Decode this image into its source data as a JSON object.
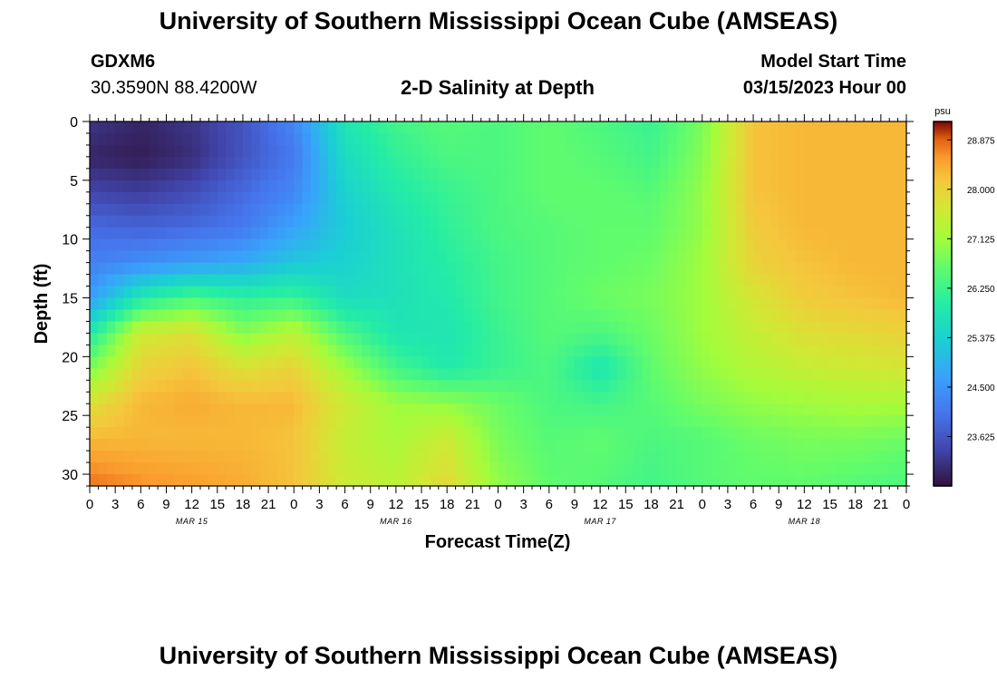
{
  "header": {
    "title": "University of Southern Mississippi Ocean Cube (AMSEAS)",
    "station_id": "GDXM6",
    "coordinates": "30.3590N  88.4200W",
    "plot_title": "2-D Salinity at Depth",
    "model_start_label": "Model Start Time",
    "model_start_value": "03/15/2023 Hour 00"
  },
  "footer": {
    "title": "University of Southern Mississippi Ocean Cube (AMSEAS)"
  },
  "chart_data": {
    "type": "heatmap",
    "title": "2-D Salinity at Depth",
    "xlabel": "Forecast Time(Z)",
    "ylabel": "Depth (ft)",
    "xlim": [
      0,
      96
    ],
    "ylim": [
      0,
      31
    ],
    "y_inverted": true,
    "x_tick_labels": [
      "0",
      "3",
      "6",
      "9",
      "12",
      "15",
      "18",
      "21",
      "0",
      "3",
      "6",
      "9",
      "12",
      "15",
      "18",
      "21",
      "0",
      "3",
      "6",
      "9",
      "12",
      "15",
      "18",
      "21",
      "0",
      "3",
      "6",
      "9",
      "12",
      "15",
      "18",
      "21",
      "0"
    ],
    "date_labels": [
      {
        "label": "MAR 15",
        "hour": 12
      },
      {
        "label": "MAR 16",
        "hour": 36
      },
      {
        "label": "MAR 17",
        "hour": 60
      },
      {
        "label": "MAR 18",
        "hour": 84
      }
    ],
    "y_ticks": [
      0,
      5,
      10,
      15,
      20,
      25,
      30
    ],
    "colorbar": {
      "unit": "psu",
      "min": 22.75,
      "max": 29.2,
      "tick_values": [
        28.875,
        28.0,
        27.125,
        26.25,
        25.375,
        24.5,
        23.625
      ],
      "tick_labels": [
        "28.875",
        "28.000",
        "27.125",
        "26.250",
        "25.375",
        "24.500",
        "23.625"
      ]
    },
    "grid": {
      "hours": [
        0,
        6,
        12,
        18,
        24,
        30,
        36,
        42,
        48,
        54,
        60,
        66,
        72,
        78,
        84,
        90,
        96
      ],
      "depths": [
        0,
        3,
        6,
        9,
        12,
        15,
        18,
        21,
        24,
        27,
        31
      ],
      "salinity_psu": [
        [
          23.2,
          23.0,
          23.2,
          23.6,
          24.3,
          25.8,
          26.3,
          26.5,
          26.4,
          26.6,
          26.4,
          26.2,
          26.8,
          28.2,
          28.3,
          28.3,
          28.3
        ],
        [
          23.0,
          22.9,
          23.1,
          23.6,
          24.1,
          25.6,
          26.1,
          26.4,
          26.4,
          26.6,
          26.5,
          26.3,
          26.9,
          28.2,
          28.3,
          28.3,
          28.3
        ],
        [
          23.4,
          23.3,
          23.5,
          23.9,
          24.3,
          25.4,
          25.9,
          26.2,
          26.4,
          26.6,
          26.6,
          26.5,
          27.0,
          28.2,
          28.3,
          28.3,
          28.3
        ],
        [
          23.9,
          23.8,
          23.9,
          24.1,
          24.7,
          25.3,
          25.7,
          26.1,
          26.4,
          26.5,
          26.6,
          26.6,
          27.0,
          28.1,
          28.3,
          28.3,
          28.3
        ],
        [
          24.2,
          24.4,
          24.6,
          24.8,
          25.2,
          25.4,
          25.7,
          26.0,
          26.3,
          26.5,
          26.6,
          26.7,
          27.1,
          28.0,
          28.2,
          28.3,
          28.3
        ],
        [
          24.6,
          25.9,
          26.4,
          26.1,
          26.2,
          25.6,
          25.7,
          25.9,
          26.3,
          26.5,
          26.7,
          26.8,
          27.1,
          27.7,
          28.1,
          28.2,
          28.3
        ],
        [
          25.9,
          27.6,
          27.8,
          26.9,
          27.4,
          26.4,
          25.8,
          25.8,
          26.2,
          26.5,
          26.4,
          26.7,
          27.1,
          27.5,
          27.8,
          27.9,
          28.0
        ],
        [
          26.8,
          28.0,
          28.2,
          27.8,
          28.0,
          27.1,
          26.3,
          25.9,
          26.2,
          26.4,
          25.8,
          26.6,
          27.0,
          27.3,
          27.5,
          27.6,
          27.7
        ],
        [
          27.8,
          28.3,
          28.4,
          28.3,
          28.3,
          27.6,
          27.1,
          27.0,
          26.7,
          26.4,
          26.3,
          26.5,
          26.8,
          27.0,
          27.1,
          27.2,
          27.2
        ],
        [
          28.3,
          28.3,
          28.3,
          28.3,
          28.2,
          27.5,
          27.2,
          27.6,
          26.8,
          26.5,
          26.6,
          26.4,
          26.5,
          26.7,
          26.8,
          26.8,
          26.7
        ],
        [
          28.8,
          28.6,
          28.5,
          28.4,
          28.2,
          27.6,
          27.4,
          27.9,
          27.0,
          26.6,
          26.5,
          26.3,
          26.5,
          26.6,
          26.6,
          26.5,
          26.4
        ]
      ]
    }
  }
}
